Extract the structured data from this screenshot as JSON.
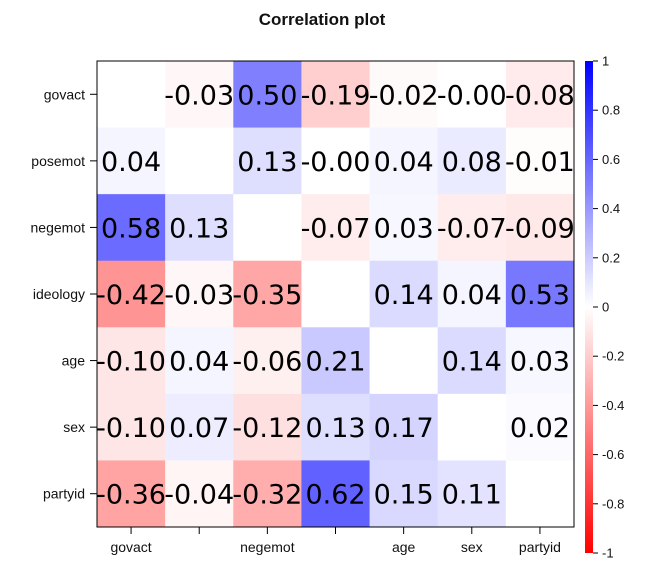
{
  "chart_data": {
    "type": "heatmap",
    "title": "Correlation plot",
    "variables": [
      "govact",
      "posemot",
      "negemot",
      "ideology",
      "age",
      "sex",
      "partyid"
    ],
    "x_tick_labels_shown": [
      "govact",
      "",
      "negemot",
      "",
      "age",
      "sex",
      "partyid"
    ],
    "matrix": [
      [
        null,
        -0.03,
        0.5,
        -0.19,
        -0.02,
        -0.0,
        -0.08
      ],
      [
        0.04,
        null,
        0.13,
        -0.0,
        0.04,
        0.08,
        -0.01
      ],
      [
        0.58,
        0.13,
        null,
        -0.07,
        0.03,
        -0.07,
        -0.09
      ],
      [
        -0.42,
        -0.03,
        -0.35,
        null,
        0.14,
        0.04,
        0.53
      ],
      [
        -0.1,
        0.04,
        -0.06,
        0.21,
        null,
        0.14,
        0.03
      ],
      [
        -0.1,
        0.07,
        -0.12,
        0.13,
        0.17,
        null,
        0.02
      ],
      [
        -0.36,
        -0.04,
        -0.32,
        0.62,
        0.15,
        0.11,
        null
      ]
    ],
    "cell_labels": [
      [
        "",
        "-0.03",
        "0.50",
        "-0.19",
        "-0.02",
        "-0.00",
        "-0.08"
      ],
      [
        "0.04",
        "",
        "0.13",
        "-0.00",
        "0.04",
        "0.08",
        "-0.01"
      ],
      [
        "0.58",
        "0.13",
        "",
        "-0.07",
        "0.03",
        "-0.07",
        "-0.09"
      ],
      [
        "-0.42",
        "-0.03",
        "-0.35",
        "",
        "0.14",
        "0.04",
        "0.53"
      ],
      [
        "-0.10",
        "0.04",
        "-0.06",
        "0.21",
        "",
        "0.14",
        "0.03"
      ],
      [
        "-0.10",
        "0.07",
        "-0.12",
        "0.13",
        "0.17",
        "",
        "0.02"
      ],
      [
        "-0.36",
        "-0.04",
        "-0.32",
        "0.62",
        "0.15",
        "0.11",
        ""
      ]
    ],
    "color_scale": {
      "min": -1,
      "max": 1,
      "low_color": "#ff0000",
      "mid_color": "#ffffff",
      "high_color": "#0000ff",
      "ticks": [
        1,
        0.8,
        0.6,
        0.4,
        0.2,
        0,
        -0.2,
        -0.4,
        -0.6,
        -0.8,
        -1
      ],
      "tick_labels": [
        "1",
        "0.8",
        "0.6",
        "0.4",
        "0.2",
        "0",
        "-0.2",
        "-0.4",
        "-0.6",
        "-0.8",
        "-1"
      ]
    },
    "legend": "right",
    "grid": false
  }
}
